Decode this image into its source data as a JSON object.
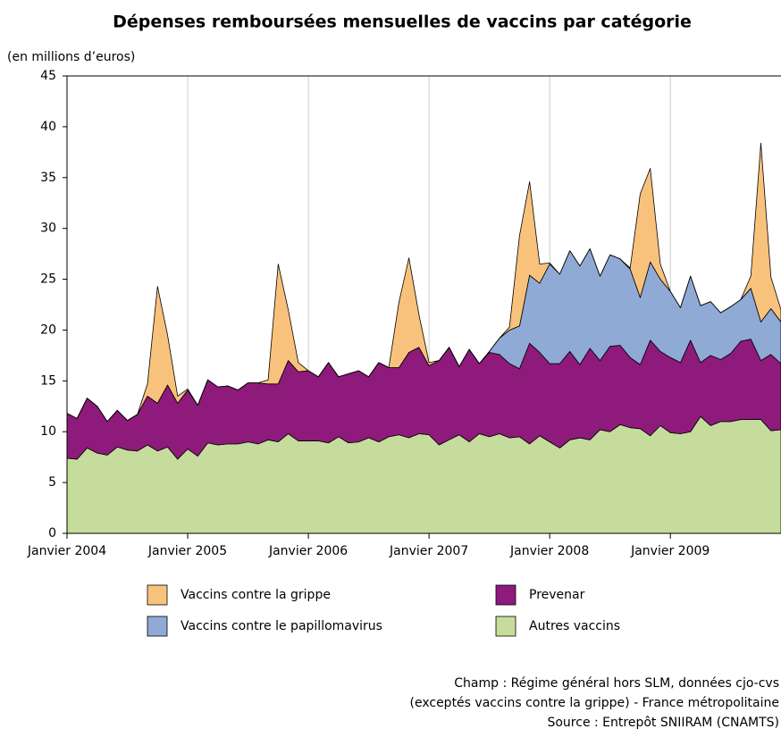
{
  "chart_data": {
    "type": "stacked_area",
    "title": "Dépenses remboursées mensuelles de vaccins par catégorie",
    "y_label": "(en millions d’euros)",
    "categories": [
      "Janvier 2004",
      null,
      null,
      null,
      null,
      null,
      null,
      null,
      null,
      null,
      null,
      null,
      "Janvier 2005",
      null,
      null,
      null,
      null,
      null,
      null,
      null,
      null,
      null,
      null,
      null,
      "Janvier 2006",
      null,
      null,
      null,
      null,
      null,
      null,
      null,
      null,
      null,
      null,
      null,
      "Janvier 2007",
      null,
      null,
      null,
      null,
      null,
      null,
      null,
      null,
      null,
      null,
      null,
      "Janvier 2008",
      null,
      null,
      null,
      null,
      null,
      null,
      null,
      null,
      null,
      null,
      null,
      "Janvier 2009",
      null,
      null,
      null,
      null,
      null,
      null,
      null,
      null,
      null,
      null,
      null
    ],
    "series": [
      {
        "name": "Autres vaccins",
        "color": "#c6dc9c",
        "values": [
          7.4,
          7.3,
          8.4,
          7.9,
          7.7,
          8.5,
          8.2,
          8.1,
          8.7,
          8.1,
          8.5,
          7.3,
          8.3,
          7.6,
          8.9,
          8.7,
          8.8,
          8.8,
          9.0,
          8.8,
          9.2,
          9.0,
          9.8,
          9.1,
          9.1,
          9.1,
          8.9,
          9.5,
          8.9,
          9.0,
          9.4,
          9.0,
          9.5,
          9.7,
          9.4,
          9.8,
          9.7,
          8.7,
          9.2,
          9.7,
          9.0,
          9.8,
          9.5,
          9.8,
          9.4,
          9.5,
          8.8,
          9.6,
          9.0,
          8.4,
          9.2,
          9.4,
          9.2,
          10.2,
          10.0,
          10.7,
          10.4,
          10.3,
          9.6,
          10.6,
          9.9,
          9.8,
          10.0,
          11.5,
          10.6,
          11.0,
          11.0,
          11.2,
          11.2,
          11.2,
          10.1,
          10.2
        ]
      },
      {
        "name": "Prevenar",
        "color": "#8e1a7b",
        "values": [
          4.4,
          4.0,
          4.9,
          4.6,
          3.3,
          3.6,
          2.9,
          3.6,
          4.8,
          4.7,
          6.1,
          5.5,
          5.8,
          5.0,
          6.2,
          5.7,
          5.7,
          5.3,
          5.8,
          6.0,
          5.5,
          5.7,
          7.2,
          6.8,
          6.9,
          6.3,
          7.9,
          5.9,
          6.8,
          7.0,
          6.0,
          7.8,
          6.8,
          6.6,
          8.4,
          8.5,
          6.8,
          8.3,
          9.1,
          6.7,
          9.1,
          6.9,
          8.3,
          7.8,
          7.3,
          6.7,
          9.9,
          8.2,
          7.7,
          8.3,
          8.7,
          7.2,
          9.0,
          6.8,
          8.4,
          7.8,
          6.9,
          6.3,
          9.4,
          7.3,
          7.4,
          7.0,
          9.0,
          5.3,
          6.9,
          6.1,
          6.7,
          7.7,
          7.9,
          5.8,
          7.5,
          6.5
        ]
      },
      {
        "name": "Vaccins contre le papillomavirus",
        "color": "#8eaad5",
        "values": [
          0,
          0,
          0,
          0,
          0,
          0,
          0,
          0,
          0,
          0,
          0,
          0,
          0,
          0,
          0,
          0,
          0,
          0,
          0,
          0,
          0,
          0,
          0,
          0,
          0,
          0,
          0,
          0,
          0,
          0,
          0,
          0,
          0,
          0,
          0,
          0,
          0,
          0,
          0,
          0,
          0,
          0,
          0.1,
          1.6,
          3.3,
          4.2,
          6.7,
          6.8,
          9.8,
          8.8,
          9.9,
          9.7,
          9.8,
          8.3,
          9.0,
          8.5,
          8.7,
          6.6,
          7.7,
          7.1,
          6.5,
          5.4,
          6.3,
          5.6,
          5.3,
          4.6,
          4.6,
          4.1,
          5.0,
          3.8,
          4.5,
          4.1
        ]
      },
      {
        "name": "Vaccins contre la grippe",
        "color": "#f9c27c",
        "values": [
          0,
          0,
          0,
          0,
          0,
          0,
          0,
          0,
          1.2,
          11.5,
          4.9,
          0.7,
          0.1,
          0,
          0,
          0,
          0,
          0,
          0,
          0,
          0.4,
          11.8,
          5.0,
          0.9,
          0,
          0,
          0,
          0,
          0,
          0,
          0,
          0,
          0,
          6.4,
          9.3,
          3.2,
          0.3,
          0,
          0,
          0,
          0,
          0,
          0,
          0,
          0.3,
          8.9,
          9.2,
          1.9,
          0.1,
          0,
          0,
          0,
          0,
          0,
          0,
          0,
          0.1,
          10.2,
          9.2,
          1.5,
          0,
          0,
          0,
          0,
          0,
          0,
          0,
          0,
          1.2,
          17.6,
          3.1,
          1.2
        ]
      }
    ],
    "ylim": [
      0,
      45
    ],
    "yticks": [
      0,
      5,
      10,
      15,
      20,
      25,
      30,
      35,
      40,
      45
    ],
    "grid": true,
    "notes": [
      "Champ : Régime général hors SLM, données cjo-cvs",
      "(exceptés vaccins contre la grippe) - France métropolitaine",
      "Source : Entrepôt SNIIRAM (CNAMTS)"
    ]
  }
}
